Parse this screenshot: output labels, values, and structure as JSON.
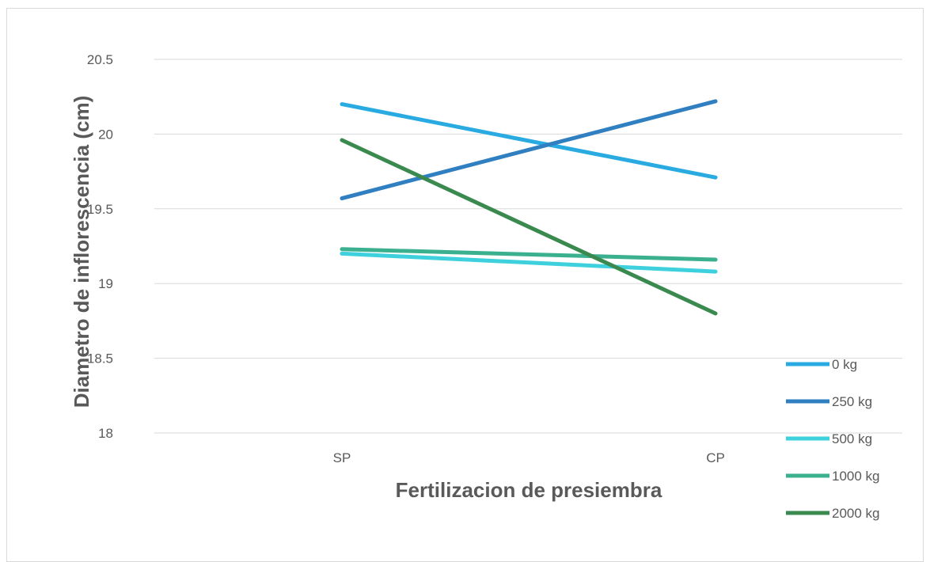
{
  "chart_data": {
    "type": "line",
    "title": "",
    "xlabel": "Fertilizacion de presiembra",
    "ylabel": "Diametro de inflorescencia (cm)",
    "categories": [
      "SP",
      "CP"
    ],
    "ylim": [
      18,
      20.5
    ],
    "yticks": [
      "18",
      "18.5",
      "19",
      "19.5",
      "20",
      "20.5"
    ],
    "ytick_values": [
      18,
      18.5,
      19,
      19.5,
      20,
      20.5
    ],
    "grid": true,
    "legend_position": "right",
    "series": [
      {
        "name": "0 kg",
        "values": [
          20.2,
          19.71
        ],
        "color": "#29abe2"
      },
      {
        "name": "250 kg",
        "values": [
          19.57,
          20.22
        ],
        "color": "#2f7fc1"
      },
      {
        "name": "500 kg",
        "values": [
          19.2,
          19.08
        ],
        "color": "#3fd0dd"
      },
      {
        "name": "1000 kg",
        "values": [
          19.23,
          19.16
        ],
        "color": "#3bb08f"
      },
      {
        "name": "2000 kg",
        "values": [
          19.96,
          18.8
        ],
        "color": "#3a8a4f"
      }
    ],
    "gridline_color": "#d9d9d9"
  }
}
